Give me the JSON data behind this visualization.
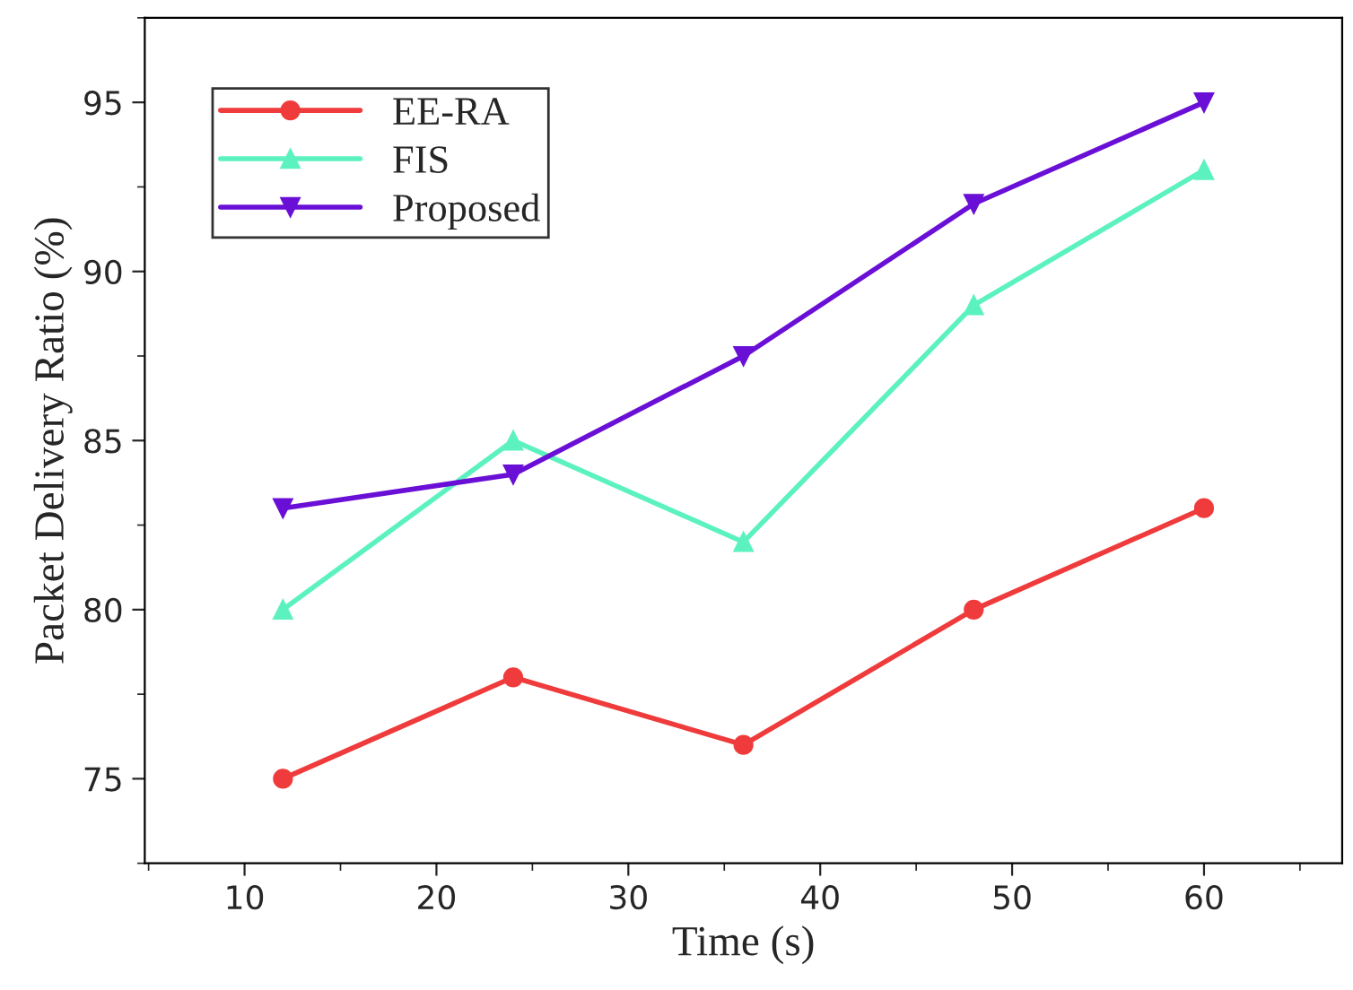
{
  "chart_data": {
    "type": "line",
    "xlabel": "Time (s)",
    "ylabel": "Packet Delivery Ratio (%)",
    "x": [
      12,
      24,
      36,
      48,
      60
    ],
    "series": [
      {
        "name": "EE-RA",
        "color": "#ef3b3b",
        "values": [
          75,
          78,
          76,
          80,
          83
        ],
        "marker": "circle"
      },
      {
        "name": "FIS",
        "color": "#5cf2c0",
        "values": [
          80,
          85,
          82,
          89,
          93
        ],
        "marker": "triangle"
      },
      {
        "name": "Proposed",
        "color": "#6a0fd6",
        "values": [
          83,
          84,
          87.5,
          92,
          95
        ],
        "marker": "triangle_down"
      }
    ],
    "xlim": [
      4.8,
      67.2
    ],
    "ylim": [
      72.5,
      97.5
    ],
    "xticks": [
      10,
      20,
      30,
      40,
      50,
      60
    ],
    "yticks": [
      75,
      80,
      85,
      90,
      95
    ],
    "legend": "top left",
    "grid": false,
    "line_style": "solid"
  }
}
